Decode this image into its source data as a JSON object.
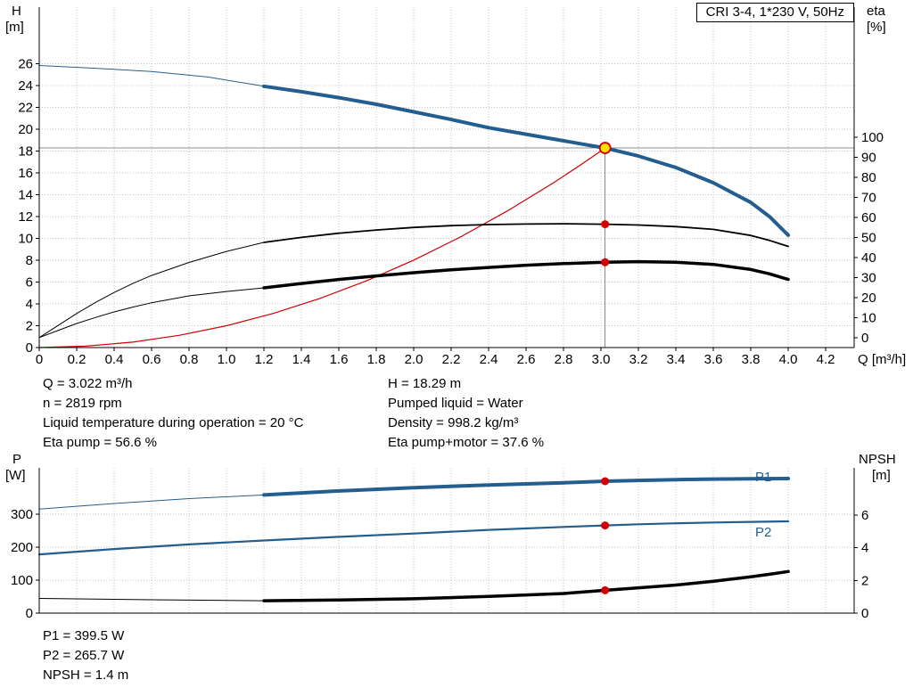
{
  "colors": {
    "curve_blue": "#235e8e",
    "curve_black": "#000000",
    "system_red": "#d00000",
    "marker_dot": "#d40000",
    "duty_fill": "#ffe000",
    "duty_stroke": "#d40000",
    "grid_gray": "#c3c3c3",
    "ref_gray": "#8c8c8c"
  },
  "annotations": {
    "left": [
      "Q = 3.022 m³/h",
      "n = 2819 rpm",
      "Liquid temperature during operation = 20 °C",
      "Eta pump = 56.6 %"
    ],
    "right": [
      "H = 18.29 m",
      "Pumped liquid = Water",
      "Density = 998.2 kg/m³",
      "Eta pump+motor = 37.6 %"
    ],
    "bottom": [
      "P1 = 399.5 W",
      "P2 = 265.7 W",
      "NPSH = 1.4 m"
    ]
  },
  "chart_data": [
    {
      "type": "line",
      "title": "CRI 3-4, 1*230 V, 50Hz",
      "x": {
        "label": "Q [m³/h]",
        "min": 0,
        "max": 4.352,
        "tick_values": [
          0,
          0.2,
          0.4,
          0.6,
          0.8,
          1.0,
          1.2,
          1.4,
          1.6,
          1.8,
          2.0,
          2.2,
          2.4,
          2.6,
          2.8,
          3.0,
          3.2,
          3.4,
          3.6,
          3.8,
          4.0,
          4.2
        ],
        "tick_labels": [
          "0",
          "0.2",
          "0.4",
          "0.6",
          "0.8",
          "1.0",
          "1.2",
          "1.4",
          "1.6",
          "1.8",
          "2.0",
          "2.2",
          "2.4",
          "2.6",
          "2.8",
          "3.0",
          "3.2",
          "3.4",
          "3.6",
          "3.8",
          "4.0",
          "4.2"
        ],
        "show_labels": true
      },
      "y_left": {
        "label": "H",
        "unit": "[m]",
        "min": 0,
        "max": 31.2,
        "tick_values": [
          0,
          2,
          4,
          6,
          8,
          10,
          12,
          14,
          16,
          18,
          20,
          22,
          24,
          26
        ],
        "tick_labels": [
          "0",
          "2",
          "4",
          "6",
          "8",
          "10",
          "12",
          "14",
          "16",
          "18",
          "20",
          "22",
          "24",
          "26"
        ]
      },
      "y_right": {
        "label": "eta",
        "unit": "[%]",
        "min": -5,
        "max": 165,
        "tick_values": [
          0,
          10,
          20,
          30,
          40,
          50,
          60,
          70,
          80,
          90,
          100
        ],
        "tick_labels": [
          "0",
          "10",
          "20",
          "30",
          "40",
          "50",
          "60",
          "70",
          "80",
          "90",
          "100"
        ]
      },
      "ref_lines": [
        {
          "type": "h",
          "v": 18.29
        },
        {
          "type": "v",
          "q": 3.022,
          "v_to": 18.29
        }
      ],
      "series": [
        {
          "name": "system-curve",
          "axis": "left",
          "color": "#d00000",
          "width": 1.2,
          "points": [
            [
              0,
              0
            ],
            [
              0.25,
              0.13
            ],
            [
              0.5,
              0.5
            ],
            [
              0.75,
              1.13
            ],
            [
              1,
              2
            ],
            [
              1.25,
              3.13
            ],
            [
              1.5,
              4.51
            ],
            [
              1.75,
              6.13
            ],
            [
              2,
              8.01
            ],
            [
              2.25,
              10.14
            ],
            [
              2.5,
              12.52
            ],
            [
              2.75,
              15.14
            ],
            [
              2.9,
              16.84
            ],
            [
              3.022,
              18.29
            ]
          ]
        },
        {
          "name": "eta-pump-lead",
          "axis": "right",
          "color": "#000000",
          "width": 1,
          "points": [
            [
              0,
              0
            ],
            [
              0.1,
              6
            ],
            [
              0.2,
              12
            ],
            [
              0.3,
              17.5
            ],
            [
              0.4,
              22.5
            ],
            [
              0.5,
              27
            ],
            [
              0.6,
              31
            ],
            [
              0.8,
              37.5
            ],
            [
              1,
              43
            ],
            [
              1.2,
              47.5
            ]
          ]
        },
        {
          "name": "eta-pump",
          "axis": "right",
          "color": "#000000",
          "width": 1.8,
          "points": [
            [
              1.2,
              47.5
            ],
            [
              1.4,
              50
            ],
            [
              1.6,
              52.1
            ],
            [
              1.8,
              53.7
            ],
            [
              2,
              55
            ],
            [
              2.2,
              55.9
            ],
            [
              2.4,
              56.4
            ],
            [
              2.6,
              56.7
            ],
            [
              2.8,
              56.8
            ],
            [
              3.022,
              56.6
            ],
            [
              3.2,
              56.2
            ],
            [
              3.4,
              55.4
            ],
            [
              3.6,
              54
            ],
            [
              3.8,
              51
            ],
            [
              3.9,
              48.5
            ],
            [
              4,
              45.5
            ]
          ]
        },
        {
          "name": "eta-pump-motor-lead",
          "axis": "right",
          "color": "#000000",
          "width": 1,
          "points": [
            [
              0,
              0
            ],
            [
              0.1,
              3.5
            ],
            [
              0.2,
              7
            ],
            [
              0.3,
              10
            ],
            [
              0.4,
              12.8
            ],
            [
              0.5,
              15.2
            ],
            [
              0.6,
              17.4
            ],
            [
              0.8,
              20.8
            ],
            [
              1,
              23
            ],
            [
              1.2,
              24.8
            ]
          ]
        },
        {
          "name": "eta-pump-motor",
          "axis": "right",
          "color": "#000000",
          "width": 3.5,
          "points": [
            [
              1.2,
              24.8
            ],
            [
              1.4,
              27
            ],
            [
              1.6,
              29
            ],
            [
              1.8,
              30.8
            ],
            [
              2,
              32.4
            ],
            [
              2.2,
              33.8
            ],
            [
              2.4,
              35
            ],
            [
              2.6,
              36.1
            ],
            [
              2.8,
              36.9
            ],
            [
              3.022,
              37.6
            ],
            [
              3.2,
              37.9
            ],
            [
              3.4,
              37.6
            ],
            [
              3.6,
              36.5
            ],
            [
              3.8,
              34
            ],
            [
              3.9,
              31.8
            ],
            [
              4,
              29
            ]
          ]
        },
        {
          "name": "pump-curve-lead",
          "axis": "left",
          "color": "#235e8e",
          "width": 1,
          "points": [
            [
              0,
              25.85
            ],
            [
              0.3,
              25.6
            ],
            [
              0.6,
              25.3
            ],
            [
              0.9,
              24.8
            ],
            [
              1.2,
              23.95
            ]
          ]
        },
        {
          "name": "pump-curve",
          "axis": "left",
          "color": "#235e8e",
          "width": 4,
          "points": [
            [
              1.2,
              23.95
            ],
            [
              1.4,
              23.45
            ],
            [
              1.6,
              22.9
            ],
            [
              1.8,
              22.3
            ],
            [
              2,
              21.6
            ],
            [
              2.2,
              20.9
            ],
            [
              2.4,
              20.15
            ],
            [
              2.6,
              19.55
            ],
            [
              2.8,
              18.95
            ],
            [
              3.022,
              18.29
            ],
            [
              3.2,
              17.55
            ],
            [
              3.4,
              16.5
            ],
            [
              3.6,
              15.1
            ],
            [
              3.8,
              13.3
            ],
            [
              3.9,
              12
            ],
            [
              4,
              10.3
            ]
          ]
        }
      ],
      "markers": [
        {
          "q": 3.022,
          "v": 56.6,
          "axis": "right",
          "style": "dot"
        },
        {
          "q": 3.022,
          "v": 37.6,
          "axis": "right",
          "style": "dot"
        },
        {
          "q": 3.022,
          "v": 18.29,
          "axis": "left",
          "style": "duty"
        }
      ]
    },
    {
      "type": "line",
      "x": {
        "min": 0,
        "max": 4.352,
        "tick_values": [
          0,
          0.2,
          0.4,
          0.6,
          0.8,
          1.0,
          1.2,
          1.4,
          1.6,
          1.8,
          2.0,
          2.2,
          2.4,
          2.6,
          2.8,
          3.0,
          3.2,
          3.4,
          3.6,
          3.8,
          4.0,
          4.2
        ],
        "tick_labels": [],
        "show_labels": false
      },
      "y_left": {
        "label": "P",
        "unit": "[W]",
        "min": 0,
        "max": 440,
        "tick_values": [
          0,
          100,
          200,
          300
        ],
        "tick_labels": [
          "0",
          "100",
          "200",
          "300"
        ]
      },
      "y_right": {
        "label": "NPSH",
        "unit": "[m]",
        "min": 0,
        "max": 8.9,
        "tick_values": [
          0,
          2,
          4,
          6
        ],
        "tick_labels": [
          "0",
          "2",
          "4",
          "6"
        ]
      },
      "ref_lines": [],
      "series": [
        {
          "name": "p1-lead",
          "axis": "left",
          "color": "#235e8e",
          "width": 1,
          "points": [
            [
              0,
              315
            ],
            [
              0.4,
              332
            ],
            [
              0.8,
              347
            ],
            [
              1.2,
              358
            ]
          ]
        },
        {
          "name": "p1",
          "axis": "left",
          "color": "#235e8e",
          "width": 4,
          "points": [
            [
              1.2,
              358
            ],
            [
              1.6,
              370
            ],
            [
              2,
              380
            ],
            [
              2.4,
              388
            ],
            [
              2.8,
              395
            ],
            [
              3.022,
              399.5
            ],
            [
              3.2,
              402
            ],
            [
              3.4,
              404.5
            ],
            [
              3.6,
              406
            ],
            [
              3.8,
              407
            ],
            [
              4,
              407.5
            ]
          ]
        },
        {
          "name": "p2",
          "axis": "left",
          "color": "#235e8e",
          "width": 2.2,
          "points": [
            [
              0,
              178
            ],
            [
              0.4,
              194
            ],
            [
              0.8,
              208
            ],
            [
              1.2,
              220
            ],
            [
              1.6,
              231
            ],
            [
              2,
              241
            ],
            [
              2.4,
              252
            ],
            [
              2.8,
              261
            ],
            [
              3.022,
              265.7
            ],
            [
              3.2,
              269
            ],
            [
              3.4,
              272
            ],
            [
              3.6,
              274.5
            ],
            [
              3.8,
              276.5
            ],
            [
              4,
              278
            ]
          ]
        },
        {
          "name": "npsh-lead",
          "axis": "right",
          "color": "#000000",
          "width": 1,
          "points": [
            [
              0,
              0.9
            ],
            [
              0.6,
              0.82
            ],
            [
              1.2,
              0.76
            ]
          ]
        },
        {
          "name": "npsh",
          "axis": "right",
          "color": "#000000",
          "width": 3.5,
          "points": [
            [
              1.2,
              0.76
            ],
            [
              1.6,
              0.8
            ],
            [
              2,
              0.88
            ],
            [
              2.4,
              1.02
            ],
            [
              2.8,
              1.2
            ],
            [
              3.022,
              1.4
            ],
            [
              3.2,
              1.55
            ],
            [
              3.4,
              1.72
            ],
            [
              3.6,
              1.95
            ],
            [
              3.8,
              2.22
            ],
            [
              3.9,
              2.38
            ],
            [
              4,
              2.55
            ]
          ]
        }
      ],
      "markers": [
        {
          "q": 3.022,
          "v": 399.5,
          "axis": "left",
          "style": "dot"
        },
        {
          "q": 3.022,
          "v": 265.7,
          "axis": "left",
          "style": "dot"
        },
        {
          "q": 3.022,
          "v": 1.4,
          "axis": "right",
          "style": "dot"
        }
      ],
      "series_labels": [
        {
          "text": "P1"
        },
        {
          "text": "P2"
        }
      ]
    }
  ]
}
